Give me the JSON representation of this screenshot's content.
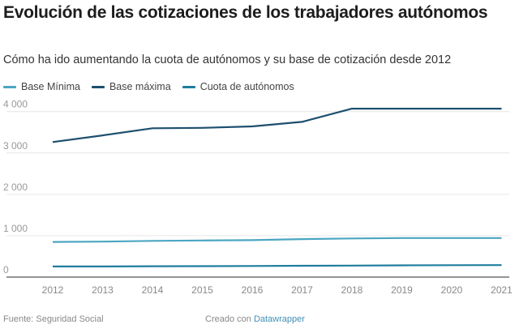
{
  "header": {
    "title": "Evolución de las cotizaciones de los trabajadores autónomos",
    "subtitle": "Cómo ha ido aumentando la cuota de autónomos y su base de cotización desde 2012"
  },
  "legend": [
    {
      "label": "Base Mínima",
      "color": "#4ba6c2"
    },
    {
      "label": "Base máxima",
      "color": "#1d4f6e"
    },
    {
      "label": "Cuota de autónomos",
      "color": "#1f7d9e"
    }
  ],
  "footer": {
    "source": "Fuente: Seguridad Social",
    "created_prefix": "Creado con",
    "created_link": "Datawrapper"
  },
  "chart_data": {
    "type": "line",
    "title": "Evolución de las cotizaciones de los trabajadores autónomos",
    "subtitle": "Cómo ha ido aumentando la cuota de autónomos y su base de cotización desde 2012",
    "xlabel": "",
    "ylabel": "",
    "x": [
      "2012",
      "2013",
      "2014",
      "2015",
      "2016",
      "2017",
      "2018",
      "2019",
      "2020",
      "2021"
    ],
    "ylim": [
      0,
      4000
    ],
    "yticks": [
      0,
      1000,
      2000,
      3000,
      4000
    ],
    "ytick_labels": [
      "0",
      "1 000",
      "2 000",
      "3 000",
      "4 000"
    ],
    "grid": true,
    "legend_position": "top-left",
    "series": [
      {
        "name": "Base Mínima",
        "color": "#4ba6c2",
        "values": [
          850,
          858,
          875,
          884,
          893,
          919,
          933,
          944,
          944,
          944
        ]
      },
      {
        "name": "Base máxima",
        "color": "#1d4f6e",
        "values": [
          3263,
          3425,
          3597,
          3606,
          3642,
          3751,
          4070,
          4070,
          4070,
          4070
        ]
      },
      {
        "name": "Cuota de autónomos",
        "color": "#1f7d9e",
        "values": [
          257,
          256,
          262,
          265,
          268,
          275,
          279,
          283,
          287,
          289
        ]
      }
    ]
  }
}
